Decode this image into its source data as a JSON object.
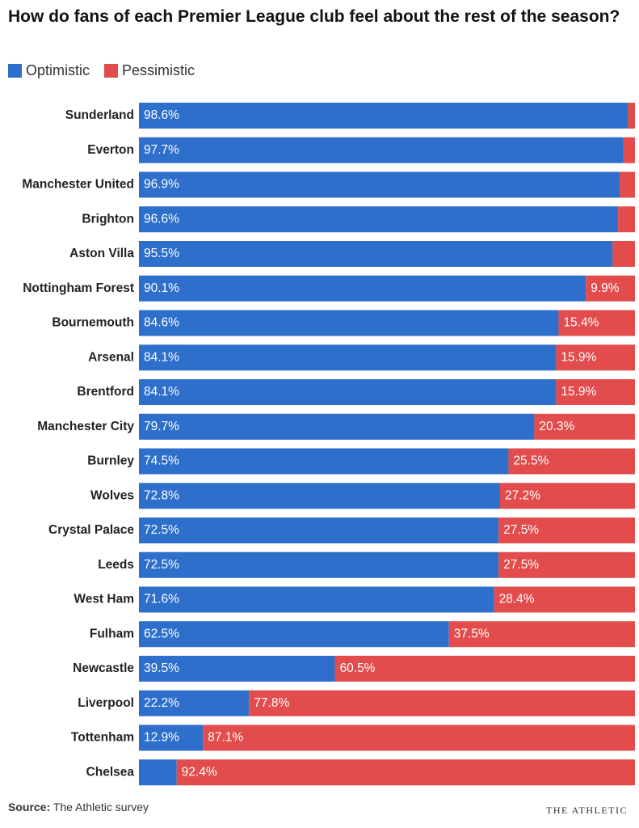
{
  "chart_data": {
    "type": "stacked-bar-horizontal",
    "title": "How do fans of each Premier League club feel about the rest of the season?",
    "categories": [
      "Sunderland",
      "Everton",
      "Manchester United",
      "Brighton",
      "Aston Villa",
      "Nottingham Forest",
      "Bournemouth",
      "Arsenal",
      "Brentford",
      "Manchester City",
      "Burnley",
      "Wolves",
      "Crystal Palace",
      "Leeds",
      "West Ham",
      "Fulham",
      "Newcastle",
      "Liverpool",
      "Tottenham",
      "Chelsea"
    ],
    "series": [
      {
        "name": "Optimistic",
        "color": "#2f6fcc",
        "values": [
          98.6,
          97.7,
          96.9,
          96.6,
          95.5,
          90.1,
          84.6,
          84.1,
          84.1,
          79.7,
          74.5,
          72.8,
          72.5,
          72.5,
          71.6,
          62.5,
          39.5,
          22.2,
          12.9,
          7.6
        ],
        "value_labels": [
          "98.6%",
          "97.7%",
          "96.9%",
          "96.6%",
          "95.5%",
          "90.1%",
          "84.6%",
          "84.1%",
          "84.1%",
          "79.7%",
          "74.5%",
          "72.8%",
          "72.5%",
          "72.5%",
          "71.6%",
          "62.5%",
          "39.5%",
          "22.2%",
          "12.9%",
          null
        ]
      },
      {
        "name": "Pessimistic",
        "color": "#e24c4c",
        "values": [
          1.4,
          2.3,
          3.1,
          3.4,
          4.5,
          9.9,
          15.4,
          15.9,
          15.9,
          20.3,
          25.5,
          27.2,
          27.5,
          27.5,
          28.4,
          37.5,
          60.5,
          77.8,
          87.1,
          92.4
        ],
        "value_labels": [
          null,
          null,
          null,
          null,
          null,
          "9.9%",
          "15.4%",
          "15.9%",
          "15.9%",
          "20.3%",
          "25.5%",
          "27.2%",
          "27.5%",
          "27.5%",
          "28.4%",
          "37.5%",
          "60.5%",
          "77.8%",
          "87.1%",
          "92.4%"
        ]
      }
    ],
    "xlim": [
      0,
      100
    ],
    "source_label": "Source:",
    "source": "The Athletic survey",
    "credit": "THE ATHLETIC"
  }
}
